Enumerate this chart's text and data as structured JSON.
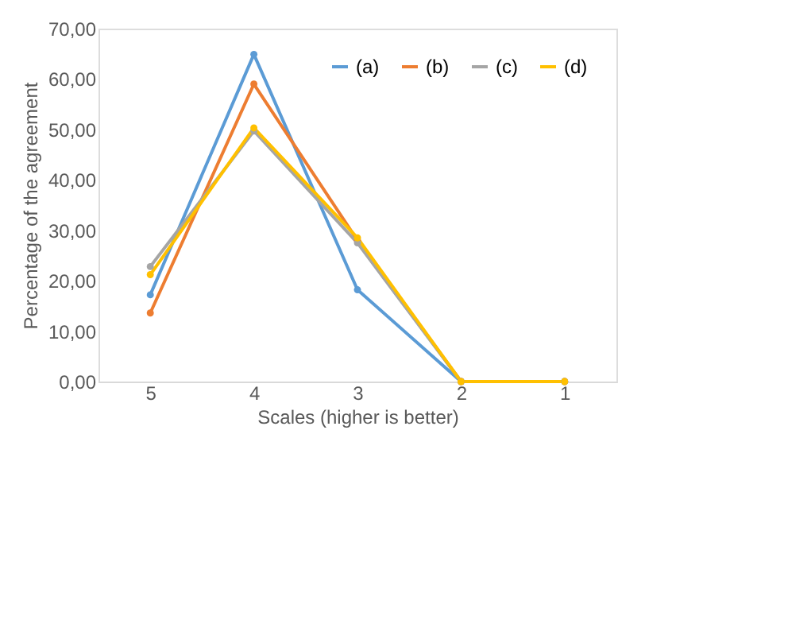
{
  "chart_data": {
    "type": "line",
    "xlabel": "Scales  (higher is better)",
    "ylabel": "Percentage of the agreement",
    "categories": [
      "5",
      "4",
      "3",
      "2",
      "1"
    ],
    "series": [
      {
        "name": "(a)",
        "color": "#5b9bd5",
        "values": [
          17.2,
          64.9,
          18.2,
          0,
          0
        ]
      },
      {
        "name": "(b)",
        "color": "#ed7d31",
        "values": [
          13.6,
          59.0,
          28.0,
          0,
          0
        ]
      },
      {
        "name": "(c)",
        "color": "#a5a5a5",
        "values": [
          22.8,
          49.7,
          27.5,
          0,
          0
        ]
      },
      {
        "name": "(d)",
        "color": "#ffc000",
        "values": [
          21.2,
          50.3,
          28.5,
          0,
          0
        ]
      }
    ],
    "ylim": [
      0,
      70
    ],
    "yticks": [
      {
        "value": 0,
        "label": "0,00"
      },
      {
        "value": 10,
        "label": "10,00"
      },
      {
        "value": 20,
        "label": "20,00"
      },
      {
        "value": 30,
        "label": "30,00"
      },
      {
        "value": 40,
        "label": "40,00"
      },
      {
        "value": 50,
        "label": "50,00"
      },
      {
        "value": 60,
        "label": "60,00"
      },
      {
        "value": 70,
        "label": "70,00"
      }
    ],
    "grid": false,
    "legend": "top right",
    "marker": "circle"
  }
}
